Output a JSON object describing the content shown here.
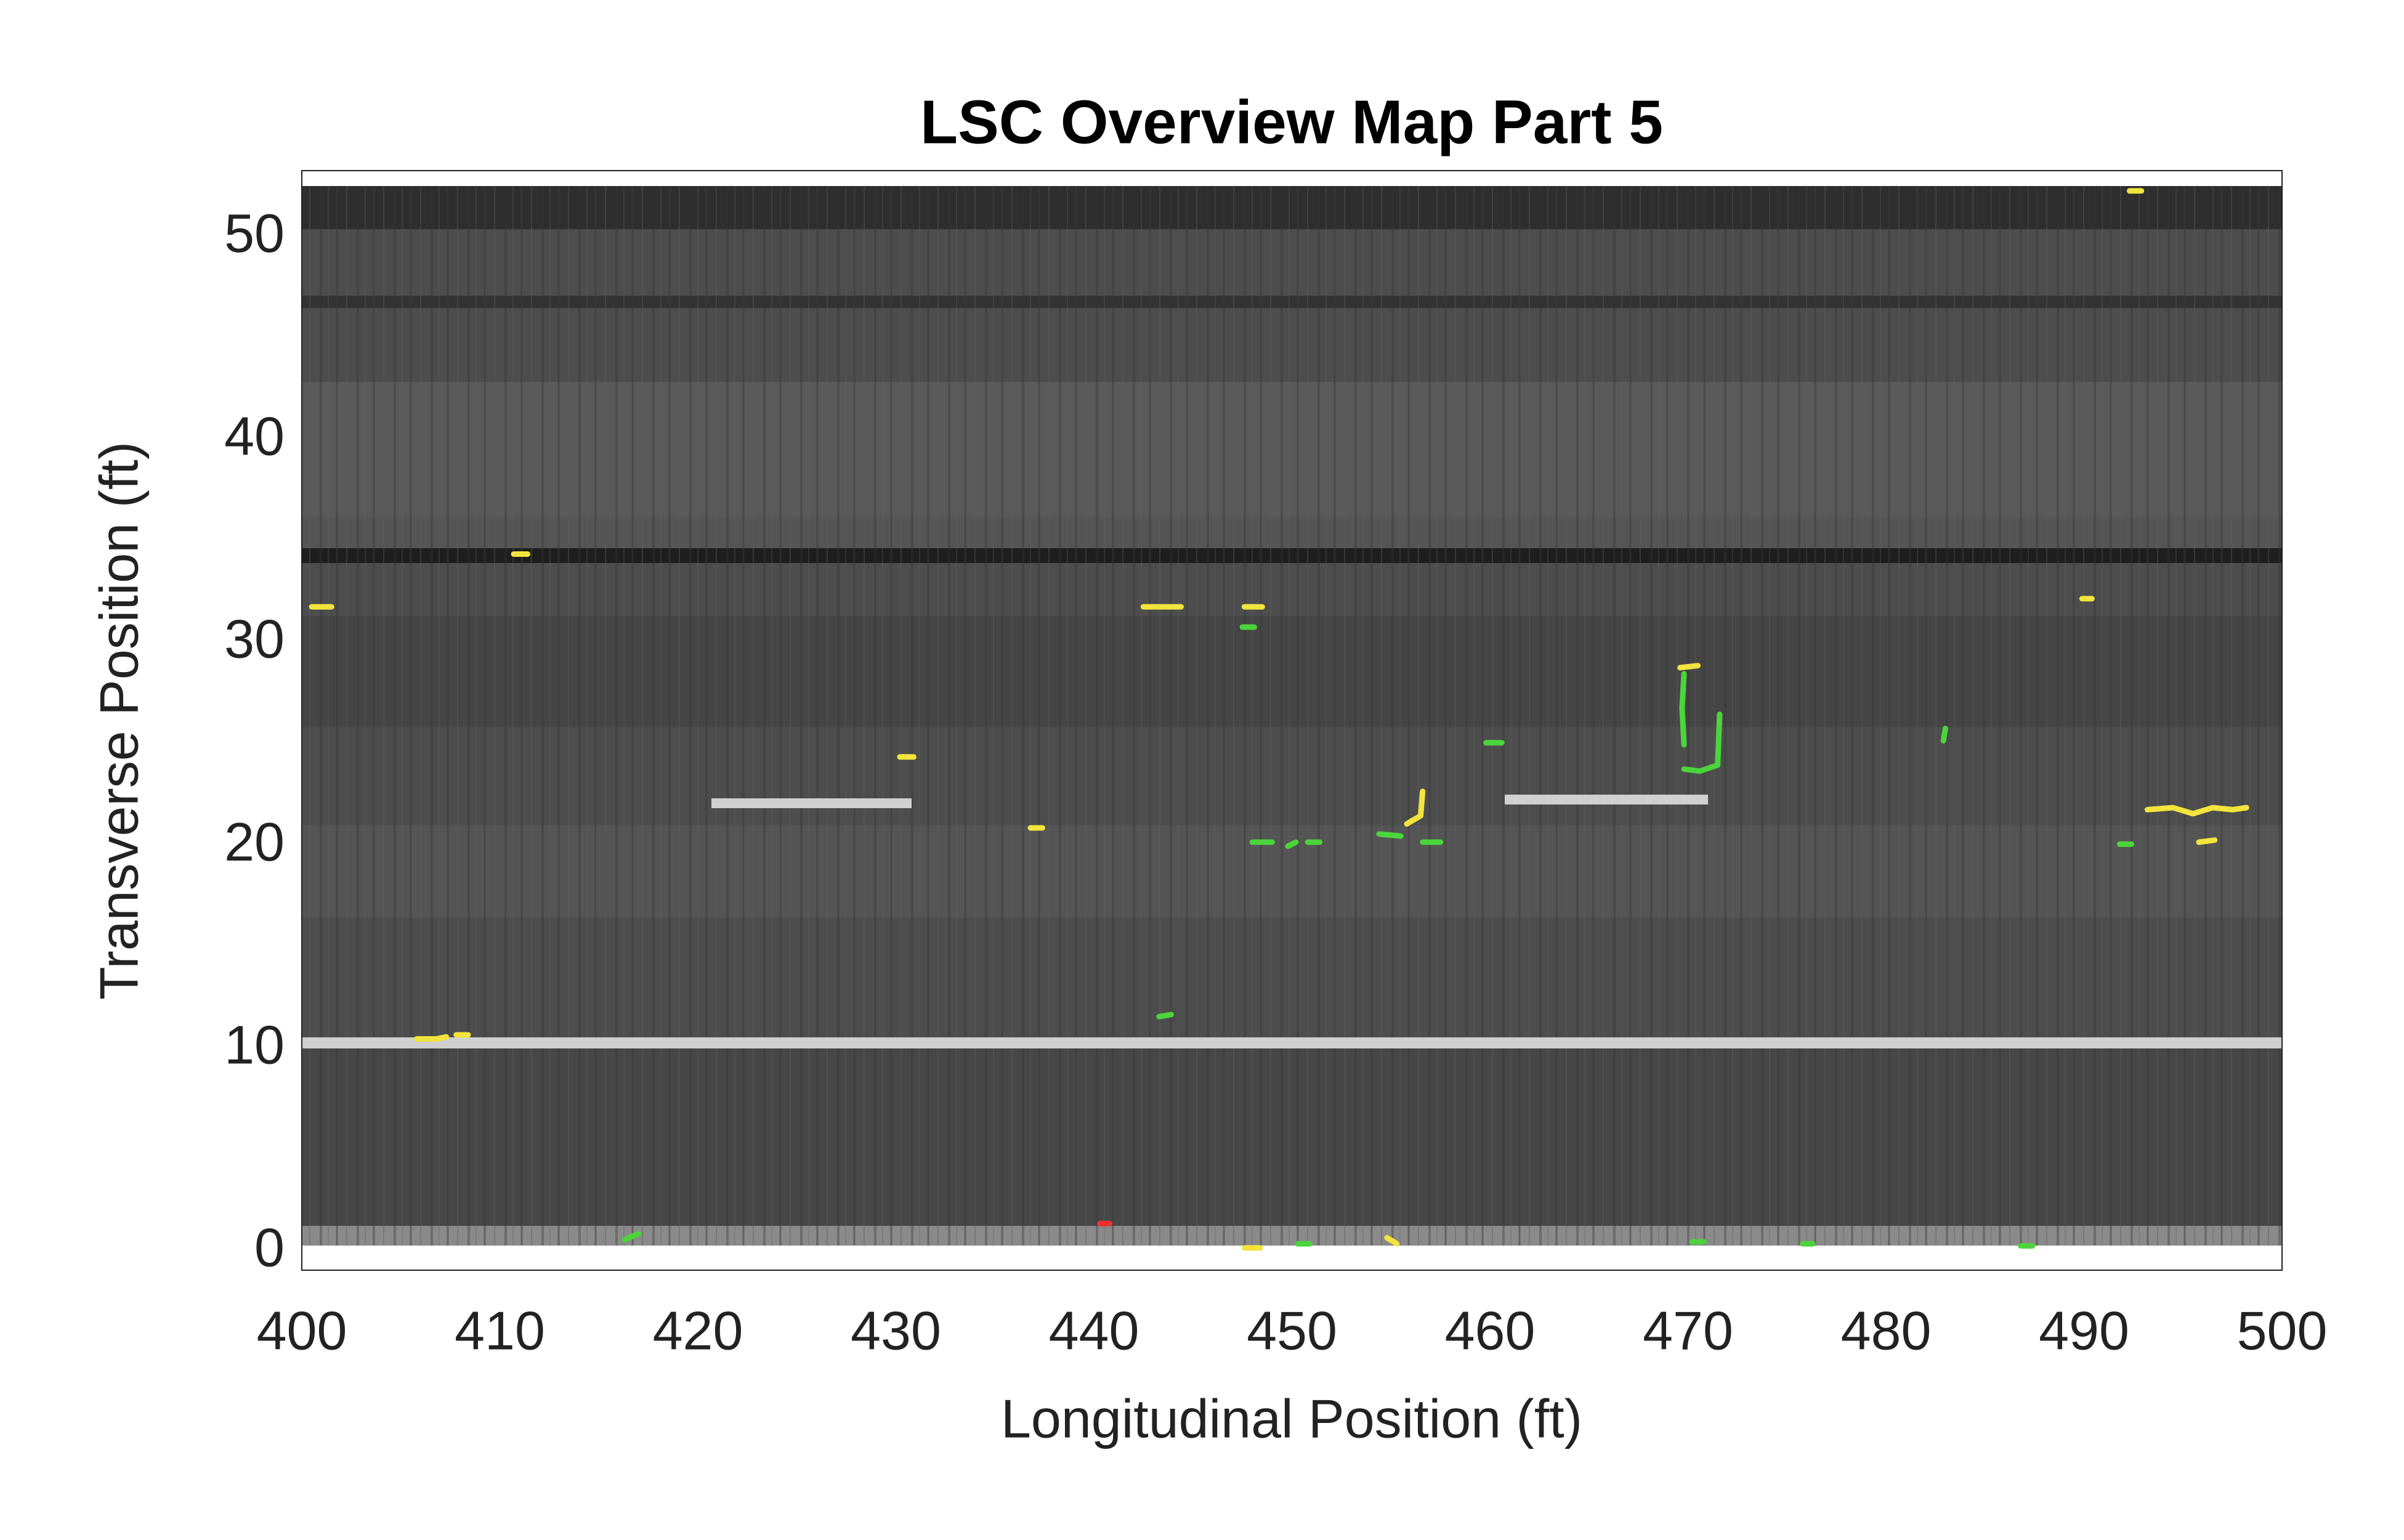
{
  "chart_data": {
    "type": "map",
    "title": "LSC Overview Map Part 5",
    "xlabel": "Longitudinal Position (ft)",
    "ylabel": "Transverse Position (ft)",
    "xlim": [
      400,
      500
    ],
    "ylim": [
      -0.9,
      53.3
    ],
    "xticks": [
      400,
      410,
      420,
      430,
      440,
      450,
      460,
      470,
      480,
      490,
      500
    ],
    "yticks": [
      0,
      10,
      20,
      30,
      40,
      50
    ],
    "cracks": [
      {
        "color": "#f2e43c",
        "x": [
          400.5,
          401.5
        ],
        "y": [
          31.8,
          31.8
        ]
      },
      {
        "color": "#f2e43c",
        "x": [
          410.7,
          411.4
        ],
        "y": [
          34.4,
          34.4
        ]
      },
      {
        "color": "#f2e43c",
        "x": [
          405.8,
          406.8,
          407.3
        ],
        "y": [
          10.5,
          10.5,
          10.6
        ]
      },
      {
        "color": "#f2e43c",
        "x": [
          407.8,
          408.4
        ],
        "y": [
          10.7,
          10.7
        ]
      },
      {
        "color": "#f2e43c",
        "x": [
          430.2,
          430.9
        ],
        "y": [
          24.4,
          24.4
        ]
      },
      {
        "color": "#f2e43c",
        "x": [
          436.8,
          437.4
        ],
        "y": [
          20.9,
          20.9
        ]
      },
      {
        "color": "#f2e43c",
        "x": [
          442.5,
          443.4,
          444.4
        ],
        "y": [
          31.8,
          31.8,
          31.8
        ]
      },
      {
        "color": "#f2e43c",
        "x": [
          447.6,
          448.5
        ],
        "y": [
          31.8,
          31.8
        ]
      },
      {
        "color": "#f2e43c",
        "x": [
          455.8,
          456.5,
          456.6
        ],
        "y": [
          21.1,
          21.5,
          22.7
        ]
      },
      {
        "color": "#f2e43c",
        "x": [
          469.6,
          470.5
        ],
        "y": [
          28.8,
          28.9
        ]
      },
      {
        "color": "#f2e43c",
        "x": [
          489.9,
          490.4
        ],
        "y": [
          32.2,
          32.2
        ]
      },
      {
        "color": "#f2e43c",
        "x": [
          493.2,
          494.5,
          495.5,
          496.5,
          497.5,
          498.2
        ],
        "y": [
          21.8,
          21.9,
          21.6,
          21.9,
          21.8,
          21.9
        ]
      },
      {
        "color": "#f2e43c",
        "x": [
          495.8,
          496.6
        ],
        "y": [
          20.2,
          20.3
        ]
      },
      {
        "color": "#f2e43c",
        "x": [
          454.8,
          455.3
        ],
        "y": [
          0.7,
          0.4
        ]
      },
      {
        "color": "#f2e43c",
        "x": [
          447.6,
          448.4
        ],
        "y": [
          0.2,
          0.2
        ]
      },
      {
        "color": "#f2e43c",
        "x": [
          492.3,
          492.9
        ],
        "y": [
          52.3,
          52.3
        ]
      },
      {
        "color": "#4cd43c",
        "x": [
          447.5,
          448.1
        ],
        "y": [
          30.8,
          30.8
        ]
      },
      {
        "color": "#4cd43c",
        "x": [
          448.0,
          449.0
        ],
        "y": [
          20.2,
          20.2
        ]
      },
      {
        "color": "#4cd43c",
        "x": [
          449.8,
          450.2
        ],
        "y": [
          20.0,
          20.2
        ]
      },
      {
        "color": "#4cd43c",
        "x": [
          450.8,
          451.4
        ],
        "y": [
          20.2,
          20.2
        ]
      },
      {
        "color": "#4cd43c",
        "x": [
          454.4,
          455.5
        ],
        "y": [
          20.6,
          20.5
        ]
      },
      {
        "color": "#4cd43c",
        "x": [
          456.6,
          457.5
        ],
        "y": [
          20.2,
          20.2
        ]
      },
      {
        "color": "#4cd43c",
        "x": [
          459.8,
          460.6
        ],
        "y": [
          25.1,
          25.1
        ]
      },
      {
        "color": "#4cd43c",
        "x": [
          469.8,
          469.7,
          469.8
        ],
        "y": [
          28.5,
          26.8,
          25.0
        ]
      },
      {
        "color": "#4cd43c",
        "x": [
          469.8,
          470.6,
          471.5,
          471.6
        ],
        "y": [
          23.8,
          23.7,
          24.0,
          26.5
        ]
      },
      {
        "color": "#4cd43c",
        "x": [
          482.9,
          483.0
        ],
        "y": [
          25.2,
          25.8
        ]
      },
      {
        "color": "#4cd43c",
        "x": [
          491.8,
          492.4
        ],
        "y": [
          20.1,
          20.1
        ]
      },
      {
        "color": "#4cd43c",
        "x": [
          443.3,
          443.9
        ],
        "y": [
          11.6,
          11.7
        ]
      },
      {
        "color": "#4cd43c",
        "x": [
          416.3,
          417.0
        ],
        "y": [
          0.6,
          0.9
        ]
      },
      {
        "color": "#4cd43c",
        "x": [
          450.3,
          450.9
        ],
        "y": [
          0.4,
          0.4
        ]
      },
      {
        "color": "#4cd43c",
        "x": [
          470.2,
          470.8
        ],
        "y": [
          0.5,
          0.5
        ]
      },
      {
        "color": "#4cd43c",
        "x": [
          475.8,
          476.3
        ],
        "y": [
          0.4,
          0.4
        ]
      },
      {
        "color": "#4cd43c",
        "x": [
          486.8,
          487.4
        ],
        "y": [
          0.3,
          0.3
        ]
      },
      {
        "color": "#f03030",
        "x": [
          440.3,
          440.8
        ],
        "y": [
          1.4,
          1.4
        ]
      }
    ]
  }
}
